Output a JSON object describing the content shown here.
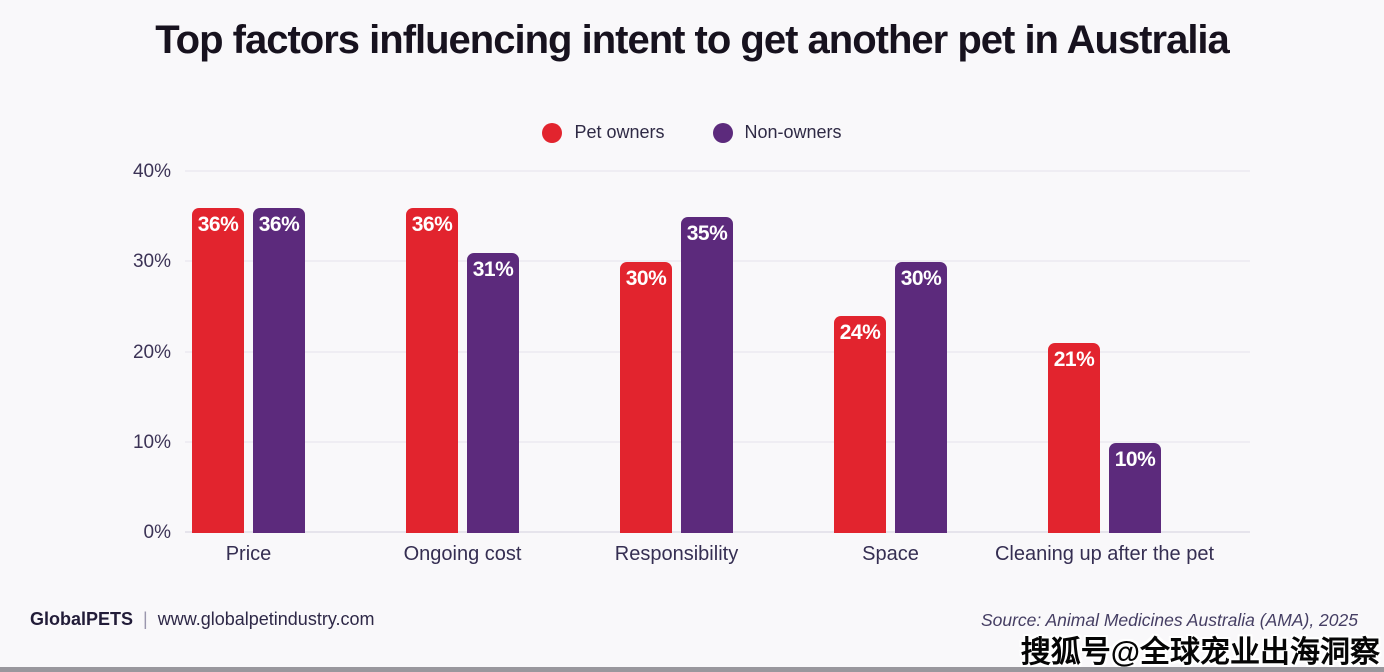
{
  "title": "Top factors influencing intent to get another pet in Australia",
  "chart_data": {
    "type": "bar",
    "title": "Top factors influencing intent to get another pet in Australia",
    "categories": [
      "Price",
      "Ongoing cost",
      "Responsibility",
      "Space",
      "Cleaning up after the pet"
    ],
    "series": [
      {
        "name": "Pet owners",
        "color": "#e2242e",
        "values": [
          36,
          36,
          30,
          24,
          21
        ]
      },
      {
        "name": "Non-owners",
        "color": "#5c2a7c",
        "values": [
          36,
          31,
          35,
          30,
          10
        ]
      }
    ],
    "xlabel": "",
    "ylabel": "",
    "ylim": [
      0,
      40
    ],
    "yticks": [
      0,
      10,
      20,
      30,
      40
    ],
    "ytick_labels": [
      "0%",
      "10%",
      "20%",
      "30%",
      "40%"
    ],
    "value_labels": [
      "36%",
      "36%",
      "30%",
      "24%",
      "21%",
      "36%",
      "31%",
      "35%",
      "30%",
      "10%"
    ],
    "value_suffix": "%",
    "grid": true,
    "legend_position": "top-center"
  },
  "legend": {
    "items": [
      {
        "label": "Pet owners",
        "color": "#e2242e"
      },
      {
        "label": "Non-owners",
        "color": "#5c2a7c"
      }
    ]
  },
  "footer": {
    "brand": "GlobalPETS",
    "separator": "|",
    "website": "www.globalpetindustry.com",
    "source": "Source: Animal Medicines Australia (AMA), 2025",
    "watermark": "搜狐号@全球宠业出海洞察"
  },
  "colors": {
    "background": "#f9f8fa",
    "title_text": "#17121e",
    "axis_text": "#3c3356",
    "gridline": "#efedf3",
    "pet_owners": "#e2242e",
    "non_owners": "#5c2a7c",
    "bar_value_text": "#ffffff"
  }
}
